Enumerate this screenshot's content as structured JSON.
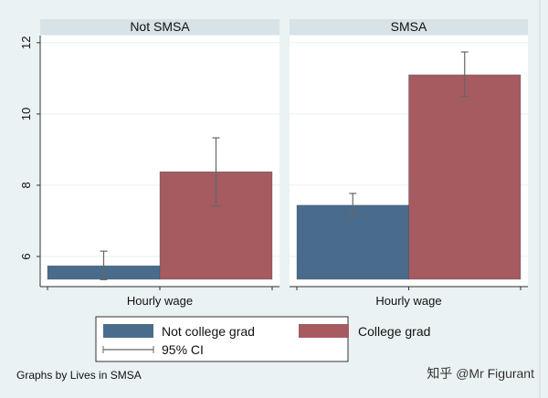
{
  "chart_data": {
    "type": "bar",
    "ylim": [
      5.18,
      12.2
    ],
    "yticks": [
      "6",
      "8",
      "10",
      "12"
    ],
    "xlabel": "Hourly wage",
    "grid": true,
    "legend_placement": "bottom",
    "note": "Graphs by Lives in SMSA",
    "panels": [
      {
        "title": "Not SMSA",
        "series": [
          {
            "name": "Not college grad",
            "value": 5.74,
            "ci": [
              5.35,
              6.15
            ]
          },
          {
            "name": "College grad",
            "value": 8.38,
            "ci": [
              7.41,
              9.33
            ]
          }
        ]
      },
      {
        "title": "SMSA",
        "series": [
          {
            "name": "Not college grad",
            "value": 7.44,
            "ci": [
              7.13,
              7.77
            ]
          },
          {
            "name": "College grad",
            "value": 11.1,
            "ci": [
              10.49,
              11.74
            ]
          }
        ]
      }
    ],
    "legend": [
      {
        "label": "Not college grad",
        "color": "#4a6c8c"
      },
      {
        "label": "College grad",
        "color": "#a55b60"
      },
      {
        "label": "95% CI",
        "color": "#666666"
      }
    ]
  },
  "watermark": "知乎 @Mr Figurant"
}
